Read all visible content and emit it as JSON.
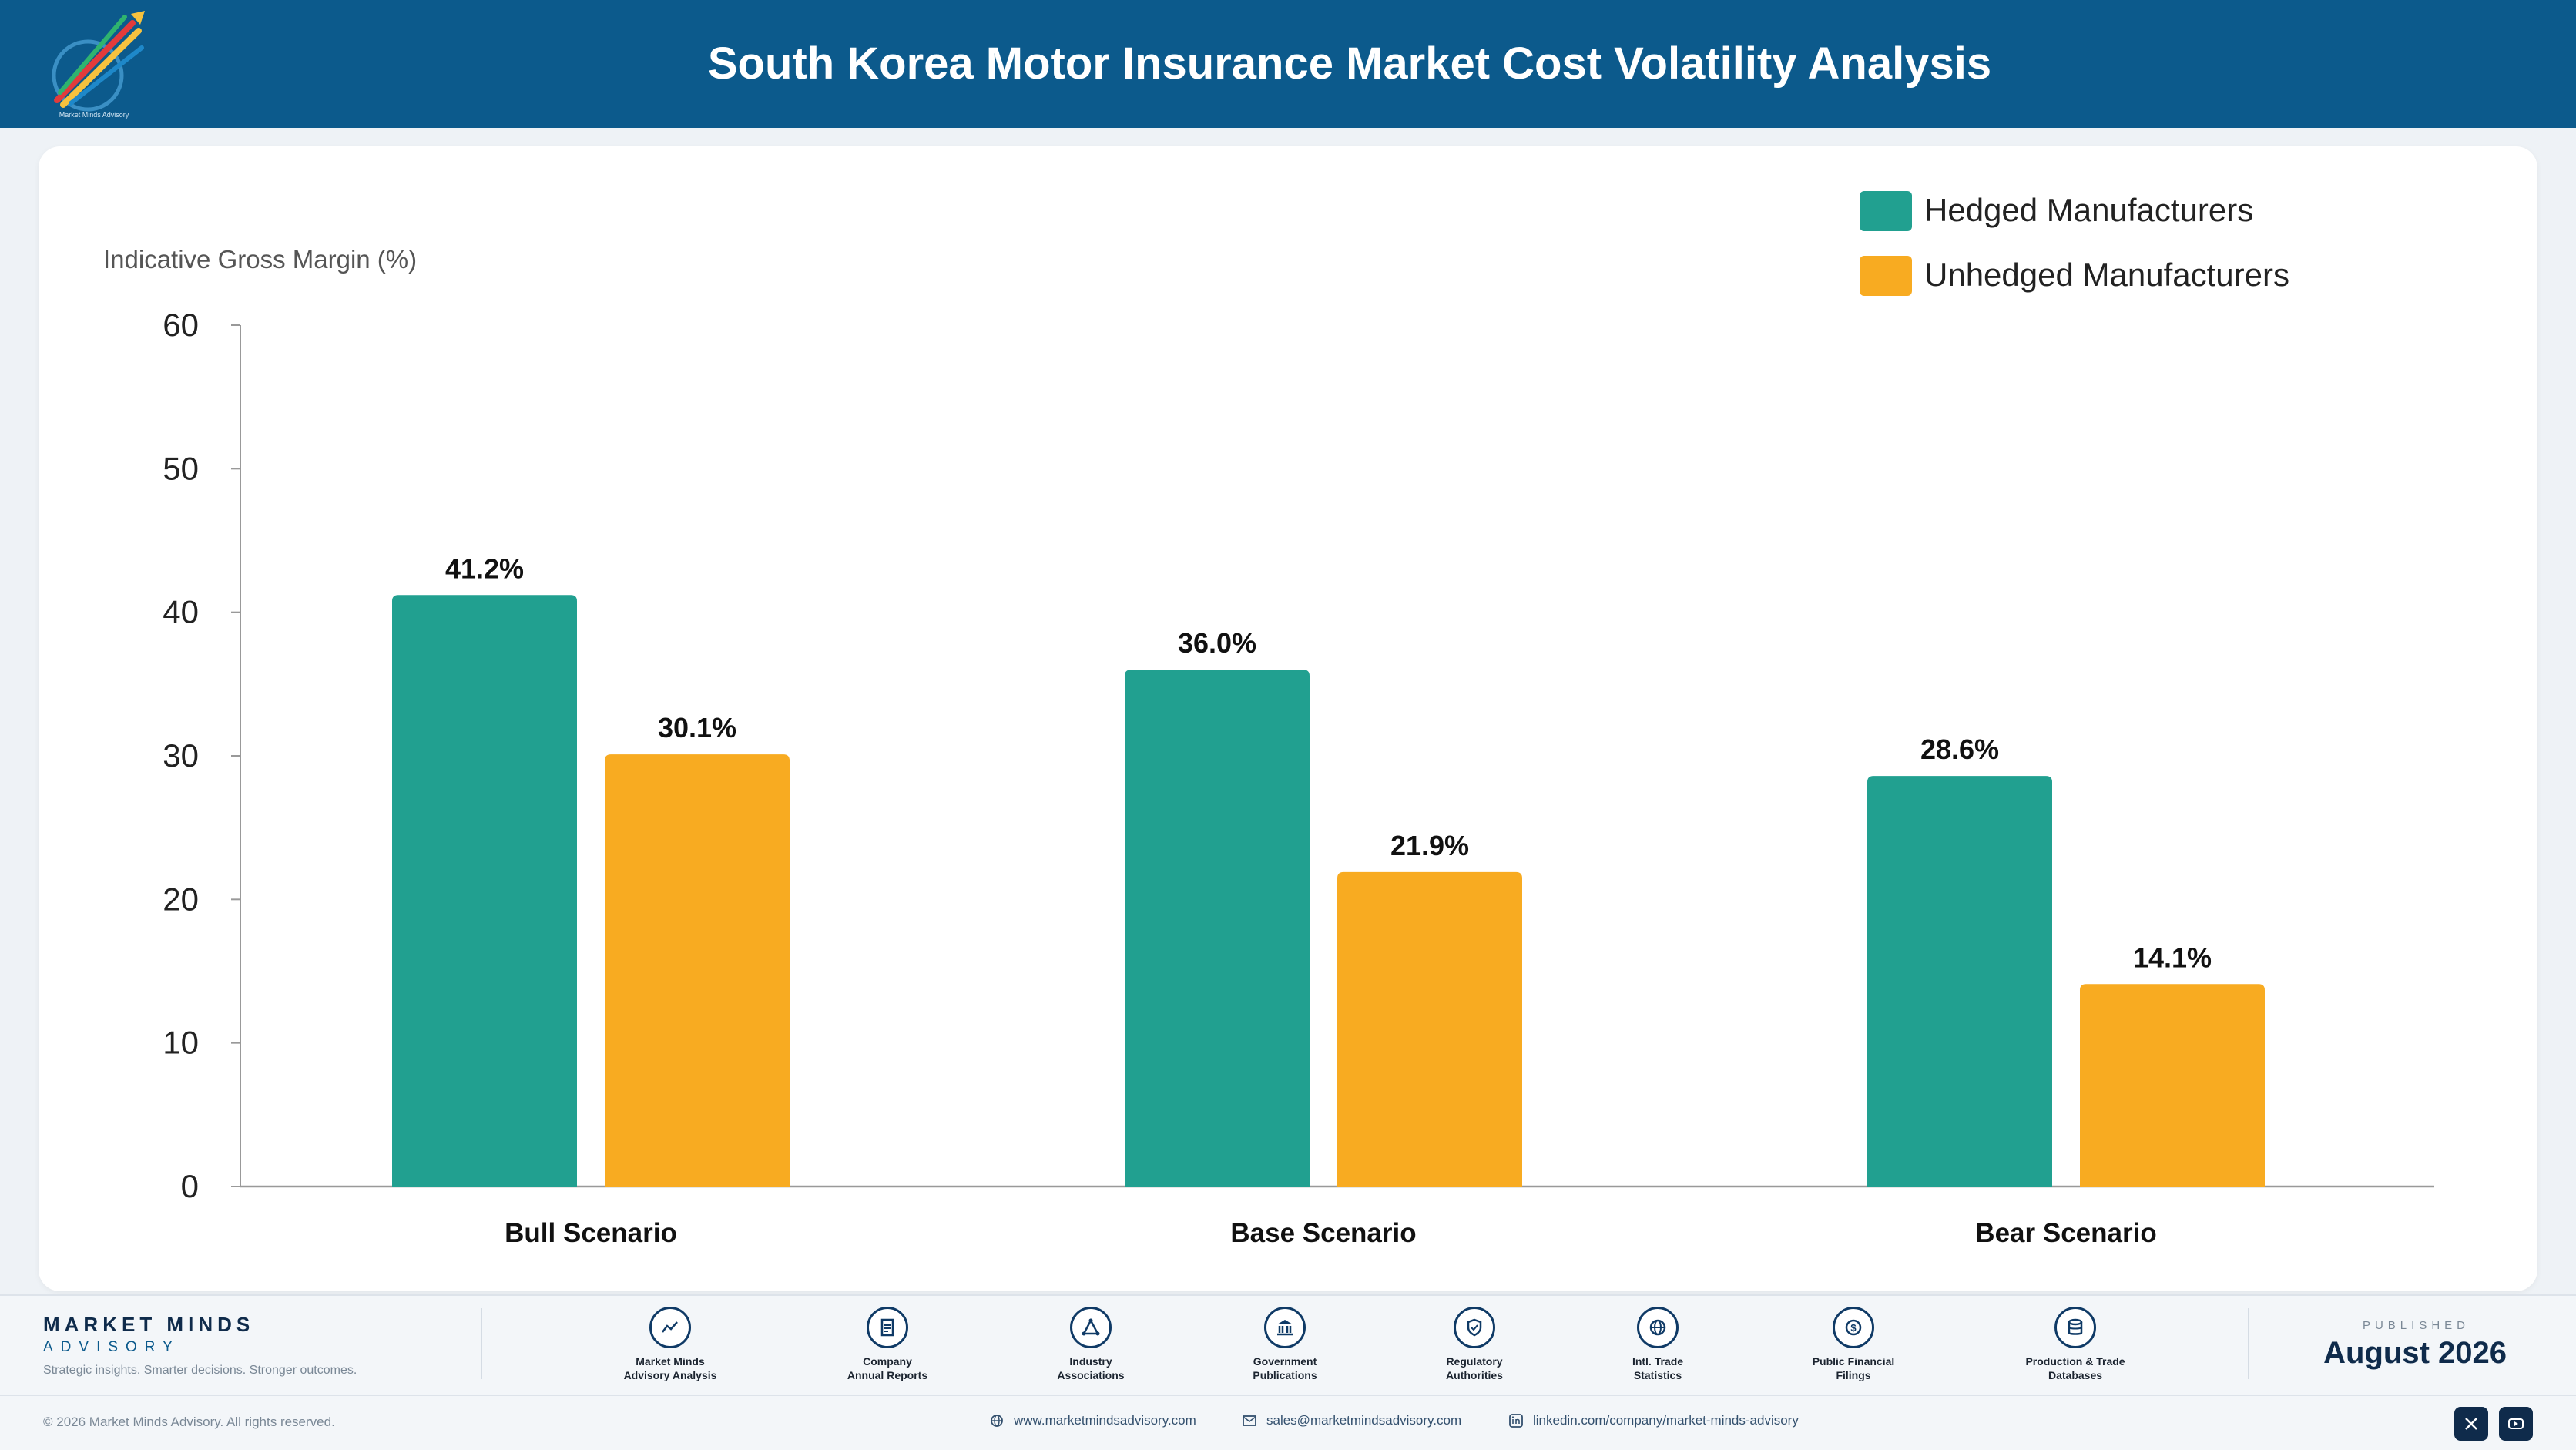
{
  "header": {
    "title": "South Korea Motor Insurance Market Cost Volatility Analysis",
    "logo_text": "Market Minds Advisory"
  },
  "chart_data": {
    "type": "bar",
    "title": "",
    "xlabel": "",
    "ylabel": "Indicative Gross Margin (%)",
    "ylim": [
      0,
      60
    ],
    "yticks": [
      0,
      10,
      20,
      30,
      40,
      50,
      60
    ],
    "categories": [
      "Bull Scenario",
      "Base Scenario",
      "Bear Scenario"
    ],
    "series": [
      {
        "name": "Hedged Manufacturers",
        "color": "#21a090",
        "values": [
          41.2,
          36.0,
          28.6
        ],
        "labels": [
          "41.2%",
          "36.0%",
          "28.6%"
        ]
      },
      {
        "name": "Unhedged Manufacturers",
        "color": "#f8ab21",
        "values": [
          30.1,
          21.9,
          14.1
        ],
        "labels": [
          "30.1%",
          "21.9%",
          "14.1%"
        ]
      }
    ],
    "grid": false,
    "legend_position": "top-right"
  },
  "footer": {
    "brand_name": "MARKET MINDS",
    "brand_sub": "ADVISORY",
    "brand_tagline": "Strategic insights. Smarter decisions. Stronger outcomes.",
    "sources": [
      {
        "label": "Market Minds\nAdvisory Analysis",
        "icon": "chart-line-icon"
      },
      {
        "label": "Company\nAnnual Reports",
        "icon": "document-icon"
      },
      {
        "label": "Industry\nAssociations",
        "icon": "network-icon"
      },
      {
        "label": "Government\nPublications",
        "icon": "government-building-icon"
      },
      {
        "label": "Regulatory\nAuthorities",
        "icon": "shield-icon"
      },
      {
        "label": "Intl. Trade\nStatistics",
        "icon": "globe-icon"
      },
      {
        "label": "Public Financial\nFilings",
        "icon": "dollar-coin-icon"
      },
      {
        "label": "Production & Trade\nDatabases",
        "icon": "database-icon"
      }
    ],
    "published_label": "PUBLISHED",
    "published_date": "August 2026",
    "copyright": "© 2026 Market Minds Advisory. All rights reserved.",
    "website": "www.marketmindsadvisory.com",
    "email": "sales@marketmindsadvisory.com",
    "linkedin": "linkedin.com/company/market-minds-advisory"
  }
}
